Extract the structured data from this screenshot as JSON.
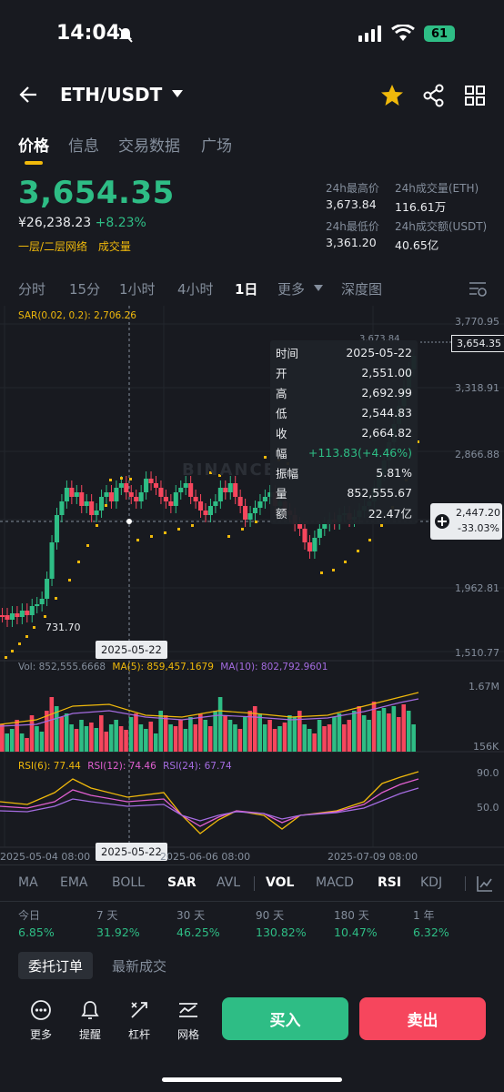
{
  "status": {
    "time": "14:04",
    "battery": "61"
  },
  "header": {
    "pair": "ETH/USDT"
  },
  "tabs": [
    "价格",
    "信息",
    "交易数据",
    "广场"
  ],
  "price": {
    "last": "3,654.35",
    "cny": "¥26,238.23",
    "change": "+8.23%",
    "link1": "一层/二层网络",
    "link2": "成交量"
  },
  "stats": {
    "high_label": "24h最高价",
    "high": "3,673.84",
    "vol_eth_label": "24h成交量(ETH)",
    "vol_eth": "116.61万",
    "low_label": "24h最低价",
    "low": "3,361.20",
    "vol_usdt_label": "24h成交额(USDT)",
    "vol_usdt": "40.65亿"
  },
  "intervals": [
    "分时",
    "15分",
    "1小时",
    "4小时",
    "1日",
    "更多",
    "深度图"
  ],
  "chart": {
    "sar_label": "SAR(0.02, 0.2): 2,706.26",
    "price_axis": [
      "3,770.95",
      "3,318.91",
      "2,866.88",
      "1,962.81",
      "1,510.77"
    ],
    "last_price_tag": "3,654.35",
    "high_mark": "3,673.84",
    "low_mark": "731.70",
    "cross_price": "2,447.20",
    "cross_pct": "-33.03%",
    "cross_date": "2025-05-22",
    "vol_label": "Vol: 852,555.6668",
    "ma5_label": "MA(5): 859,457.1679",
    "ma10_label": "MA(10): 802,792.9601",
    "vol_axis": [
      "1.67M",
      "156K"
    ],
    "rsi6_label": "RSI(6): 77.44",
    "rsi12_label": "RSI(12): 74.46",
    "rsi24_label": "RSI(24): 67.74",
    "rsi_axis": [
      "90.0",
      "50.0"
    ],
    "dates": [
      "2025-05-04 08:00",
      "2025-06-06 08:00",
      "2025-07-09 08:00"
    ],
    "watermark": "BINANCE"
  },
  "tooltip": {
    "rows": [
      {
        "k": "时间",
        "v": "2025-05-22"
      },
      {
        "k": "开",
        "v": "2,551.00"
      },
      {
        "k": "高",
        "v": "2,692.99"
      },
      {
        "k": "低",
        "v": "2,544.83"
      },
      {
        "k": "收",
        "v": "2,664.82"
      },
      {
        "k": "幅",
        "v": "+113.83(+4.46%)"
      },
      {
        "k": "振幅",
        "v": "5.81%"
      },
      {
        "k": "量",
        "v": "852,555.67"
      },
      {
        "k": "额",
        "v": "22.47亿"
      }
    ]
  },
  "indicators": [
    "MA",
    "EMA",
    "BOLL",
    "SAR",
    "AVL",
    "VOL",
    "MACD",
    "RSI",
    "KDJ"
  ],
  "performance": [
    {
      "label": "今日",
      "value": "6.85%"
    },
    {
      "label": "7 天",
      "value": "31.92%"
    },
    {
      "label": "30 天",
      "value": "46.25%"
    },
    {
      "label": "90 天",
      "value": "130.82%"
    },
    {
      "label": "180 天",
      "value": "10.47%"
    },
    {
      "label": "1 年",
      "value": "6.32%"
    }
  ],
  "orders": {
    "tab1": "委托订单",
    "tab2": "最新成交"
  },
  "toolbar": {
    "more": "更多",
    "alert": "提醒",
    "leverage": "杠杆",
    "grid": "网格",
    "buy": "买入",
    "sell": "卖出"
  },
  "colors": {
    "up": "#2ebd85",
    "down": "#f6465d",
    "accent": "#f0b90b",
    "bg": "#181a20"
  }
}
